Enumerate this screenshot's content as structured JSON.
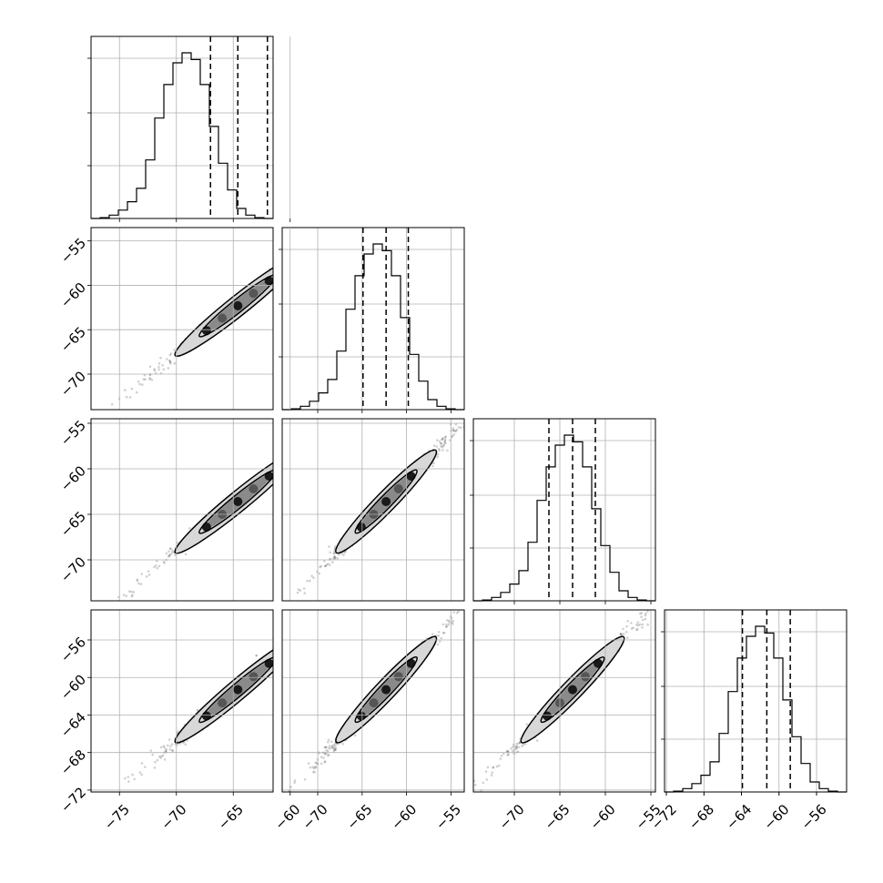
{
  "chart_data": {
    "type": "corner",
    "n_params": 4,
    "grid": true,
    "quantiles": [
      0.16,
      0.5,
      0.84
    ],
    "params": [
      {
        "range": [
          -77.5,
          -61.5
        ],
        "x_ticks": [
          -75,
          -70,
          -65,
          -60
        ],
        "x_tick_labels": [
          "−75",
          "−70",
          "−65",
          "−60"
        ],
        "y_ticks": [],
        "y_tick_labels": [],
        "median": -64.6,
        "q16": -67.0,
        "q84": -62.0,
        "hist": [
          0.0,
          0.005,
          0.02,
          0.05,
          0.1,
          0.18,
          0.35,
          0.6,
          0.8,
          0.93,
          0.99,
          0.95,
          0.8,
          0.55,
          0.33,
          0.17,
          0.06,
          0.02,
          0.005,
          0.0
        ]
      },
      {
        "range": [
          -74.0,
          -53.5
        ],
        "x_ticks": [
          -70,
          -65,
          -60,
          -55
        ],
        "x_tick_labels": [
          "−70",
          "−65",
          "−60",
          "−55"
        ],
        "y_ticks": [
          -55,
          -60,
          -65,
          -70
        ],
        "y_tick_labels": [
          "−55",
          "−60",
          "−65",
          "−70"
        ],
        "median": -62.3,
        "q16": -64.9,
        "q84": -59.8,
        "hist": [
          0.0,
          0.005,
          0.02,
          0.05,
          0.1,
          0.18,
          0.35,
          0.6,
          0.8,
          0.93,
          0.99,
          0.95,
          0.8,
          0.55,
          0.33,
          0.17,
          0.06,
          0.02,
          0.005,
          0.0
        ]
      },
      {
        "range": [
          -74.5,
          -54.5
        ],
        "x_ticks": [
          -70,
          -65,
          -60,
          -55
        ],
        "x_tick_labels": [
          "−70",
          "−65",
          "−60",
          "−55"
        ],
        "y_ticks": [
          -55,
          -60,
          -65,
          -70
        ],
        "y_tick_labels": [
          "−55",
          "−60",
          "−65",
          "−70"
        ],
        "median": -63.6,
        "q16": -66.2,
        "q84": -61.1,
        "hist": [
          0.0,
          0.005,
          0.02,
          0.05,
          0.1,
          0.18,
          0.35,
          0.6,
          0.8,
          0.93,
          0.99,
          0.95,
          0.8,
          0.55,
          0.33,
          0.17,
          0.06,
          0.02,
          0.005,
          0.0
        ]
      },
      {
        "range": [
          -72.2,
          -52.8
        ],
        "x_ticks": [
          -72,
          -68,
          -64,
          -60,
          -56
        ],
        "x_tick_labels": [
          "−72",
          "−68",
          "−64",
          "−60",
          "−56"
        ],
        "y_ticks": [
          -56,
          -60,
          -64,
          -68,
          -72
        ],
        "y_tick_labels": [
          "−56",
          "−60",
          "−64",
          "−68",
          "−72"
        ],
        "median": -61.3,
        "q16": -63.9,
        "q84": -58.8,
        "hist": [
          0.0,
          0.005,
          0.02,
          0.05,
          0.1,
          0.18,
          0.35,
          0.6,
          0.8,
          0.93,
          0.99,
          0.95,
          0.8,
          0.55,
          0.33,
          0.17,
          0.06,
          0.02,
          0.005,
          0.0
        ]
      }
    ]
  }
}
